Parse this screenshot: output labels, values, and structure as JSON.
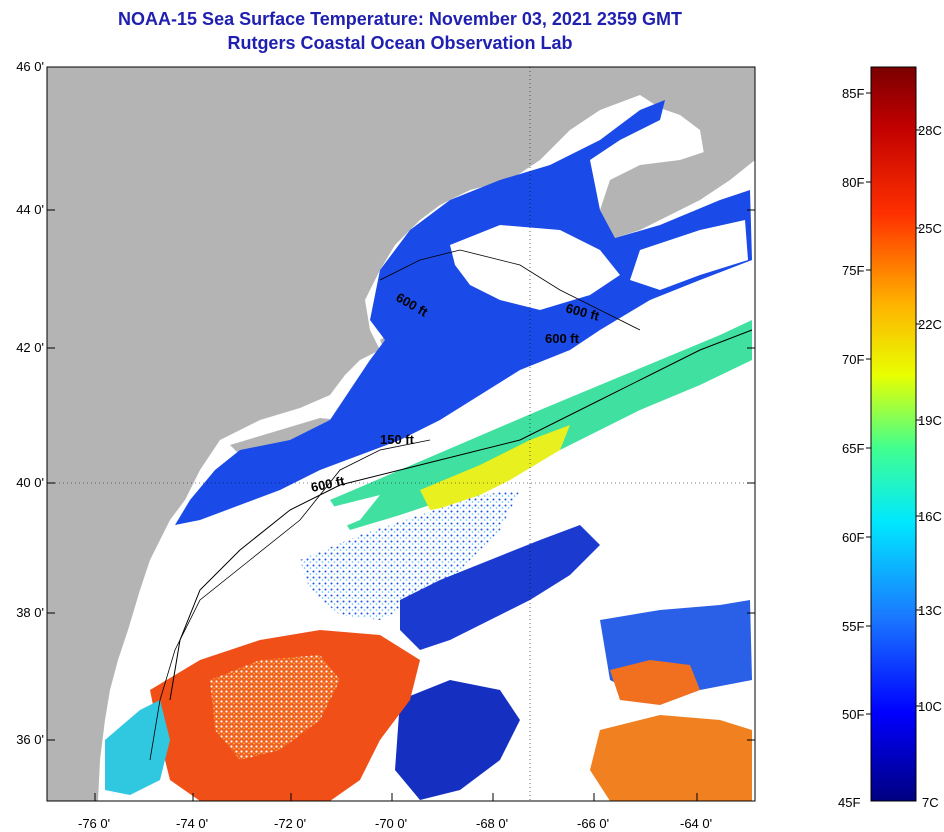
{
  "title_line1": "NOAA-15 Sea Surface Temperature:  November 03, 2021 2359 GMT",
  "title_line2": "Rutgers Coastal Ocean Observation Lab",
  "lat_ticks": [
    "46 0'",
    "44 0'",
    "42 0'",
    "40 0'",
    "38 0'",
    "36 0'"
  ],
  "lon_ticks": [
    "-76 0'",
    "-74 0'",
    "-72 0'",
    "-70 0'",
    "-68 0'",
    "-66 0'",
    "-64 0'"
  ],
  "contours": [
    "600 ft",
    "600 ft",
    "600 ft",
    "150 ft",
    "600 ft"
  ],
  "colorbar": {
    "fahrenheit": [
      "85F",
      "80F",
      "75F",
      "70F",
      "65F",
      "60F",
      "55F",
      "50F",
      "45F"
    ],
    "celsius": [
      "28C",
      "25C",
      "22C",
      "19C",
      "16C",
      "13C",
      "10C",
      "7C"
    ]
  },
  "colors": {
    "land": "#b4b4b4",
    "cloud": "#ffffff",
    "cold": "#1a3ee0",
    "warm": "#f04010",
    "title": "#1f1fb0"
  }
}
